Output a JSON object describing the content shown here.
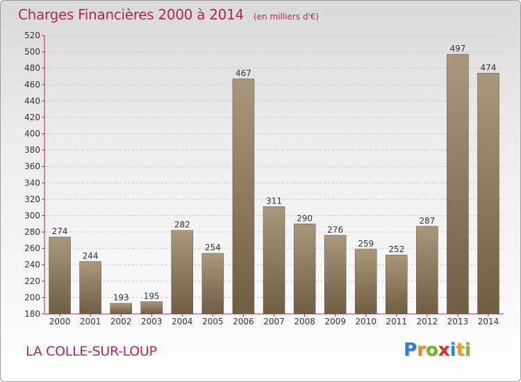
{
  "title": "Charges Financières 2000 à 2014",
  "subtitle": "(en milliers d'€)",
  "city": "LA COLLE-SUR-LOUP",
  "logo": {
    "letters": [
      "P",
      "r",
      "o",
      "x",
      "i",
      "t",
      "i"
    ],
    "colors": [
      "#2a7fd4",
      "#e8891a",
      "#7ab51d",
      "#d8322a",
      "#1f93cf",
      "#e8a21a",
      "#8db52c"
    ]
  },
  "colors": {
    "accent": "#b5245e",
    "bar_light": "#a9987a",
    "bar_dark": "#6f5e42",
    "axis": "#b5245e",
    "grid": "#c8c8c8",
    "label": "#333333"
  },
  "chart_data": {
    "type": "bar",
    "title": "Charges Financières 2000 à 2014",
    "subtitle": "(en milliers d'€)",
    "categories": [
      "2000",
      "2001",
      "2002",
      "2003",
      "2004",
      "2005",
      "2006",
      "2007",
      "2008",
      "2009",
      "2010",
      "2011",
      "2012",
      "2013",
      "2014"
    ],
    "values": [
      274,
      244,
      193,
      195,
      282,
      254,
      467,
      311,
      290,
      276,
      259,
      252,
      287,
      497,
      474
    ],
    "ylim": [
      180,
      520
    ],
    "yticks": [
      180,
      200,
      220,
      240,
      260,
      280,
      300,
      320,
      340,
      360,
      380,
      400,
      420,
      440,
      460,
      480,
      500,
      520
    ],
    "grid": true
  }
}
